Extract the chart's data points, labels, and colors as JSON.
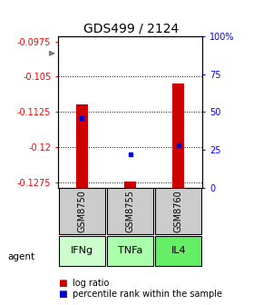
{
  "title": "GDS499 / 2124",
  "samples": [
    "GSM8750",
    "GSM8755",
    "GSM8760"
  ],
  "agents": [
    "IFNg",
    "TNFa",
    "IL4"
  ],
  "log_ratios": [
    -0.1108,
    -0.1272,
    -0.1065
  ],
  "percentile_ranks": [
    46,
    22,
    28
  ],
  "ylim_left": [
    -0.1285,
    -0.0965
  ],
  "ylim_right": [
    0,
    100
  ],
  "yticks_left": [
    -0.1275,
    -0.12,
    -0.1125,
    -0.105,
    -0.0975
  ],
  "yticks_right": [
    0,
    25,
    50,
    75,
    100
  ],
  "ytick_labels_right": [
    "0",
    "25",
    "50",
    "75",
    "100%"
  ],
  "bar_color": "#cc0000",
  "dot_color": "#0000cc",
  "sample_bg_color": "#cccccc",
  "agent_colors": [
    "#ccffcc",
    "#aaffaa",
    "#66ee66"
  ],
  "title_fontsize": 10,
  "bar_width": 0.25,
  "x_positions": [
    0.5,
    1.5,
    2.5
  ],
  "xlim": [
    0,
    3
  ],
  "grid_ticks": [
    -0.1275,
    -0.12,
    -0.1125,
    -0.105
  ]
}
